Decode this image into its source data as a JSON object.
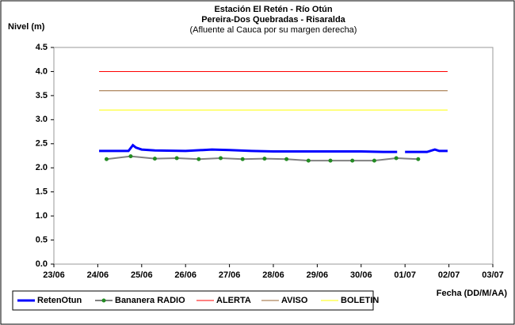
{
  "chart_data": {
    "type": "line",
    "title": "Estación El Retén - Río Otún",
    "subtitle": "Pereira-Dos Quebradas - Risaralda",
    "subtitle2": "(Afluente al Cauca por su margen derecha)",
    "y_label": "Nivel (m)",
    "x_label": "Fecha (DD/M/AA)",
    "xlim": [
      0,
      10
    ],
    "xticks": [
      {
        "value": 0,
        "label": "23/06"
      },
      {
        "value": 1,
        "label": "24/06"
      },
      {
        "value": 2,
        "label": "25/06"
      },
      {
        "value": 3,
        "label": "26/06"
      },
      {
        "value": 4,
        "label": "27/06"
      },
      {
        "value": 5,
        "label": "28/06"
      },
      {
        "value": 6,
        "label": "29/06"
      },
      {
        "value": 7,
        "label": "30/06"
      },
      {
        "value": 8,
        "label": "01/07"
      },
      {
        "value": 9,
        "label": "02/07"
      },
      {
        "value": 10,
        "label": "03/07"
      }
    ],
    "ylim": [
      0,
      4.5
    ],
    "yticks": [
      {
        "value": 0,
        "label": "0.0"
      },
      0.5,
      {
        "value": 1,
        "label": "1.0"
      },
      1.5,
      {
        "value": 2,
        "label": "2.0"
      },
      2.5,
      {
        "value": 3,
        "label": "3.0"
      },
      3.5,
      {
        "value": 4,
        "label": "4.0"
      },
      4.5
    ],
    "grid": false,
    "legend": "bottom",
    "series": [
      {
        "name": "RetenOtun",
        "color": "#0000ff",
        "width": 3,
        "x": [
          1.03,
          1.7,
          1.8,
          1.87,
          2.0,
          2.3,
          3.0,
          3.4,
          3.6,
          4.0,
          4.5,
          5.0,
          6.0,
          7.0,
          7.5,
          7.82,
          7.95,
          8.0,
          8.5,
          8.68,
          8.78,
          8.97
        ],
        "values": [
          2.35,
          2.35,
          2.47,
          2.42,
          2.38,
          2.36,
          2.35,
          2.37,
          2.38,
          2.37,
          2.35,
          2.34,
          2.34,
          2.34,
          2.33,
          2.33,
          null,
          2.33,
          2.33,
          2.38,
          2.35,
          2.35
        ]
      },
      {
        "name": "Bananera RADIO",
        "color": "#808080",
        "marker_color": "#228b22",
        "width": 2,
        "marker": "circle",
        "x": [
          1.2,
          1.75,
          2.3,
          2.8,
          3.3,
          3.8,
          4.3,
          4.8,
          5.3,
          5.8,
          6.3,
          6.8,
          7.3,
          7.8,
          8.3
        ],
        "values": [
          2.18,
          2.24,
          2.19,
          2.2,
          2.18,
          2.2,
          2.18,
          2.19,
          2.18,
          2.15,
          2.15,
          2.15,
          2.15,
          2.2,
          2.18
        ]
      },
      {
        "name": "ALERTA",
        "color": "#ff0000",
        "width": 1,
        "x": [
          1.03,
          8.97
        ],
        "values": [
          4.0,
          4.0
        ]
      },
      {
        "name": "AVISO",
        "color": "#996633",
        "width": 1,
        "x": [
          1.03,
          8.97
        ],
        "values": [
          3.6,
          3.6
        ]
      },
      {
        "name": "BOLETIN",
        "color": "#ffff00",
        "width": 1,
        "x": [
          1.03,
          8.97
        ],
        "values": [
          3.2,
          3.2
        ]
      }
    ]
  }
}
